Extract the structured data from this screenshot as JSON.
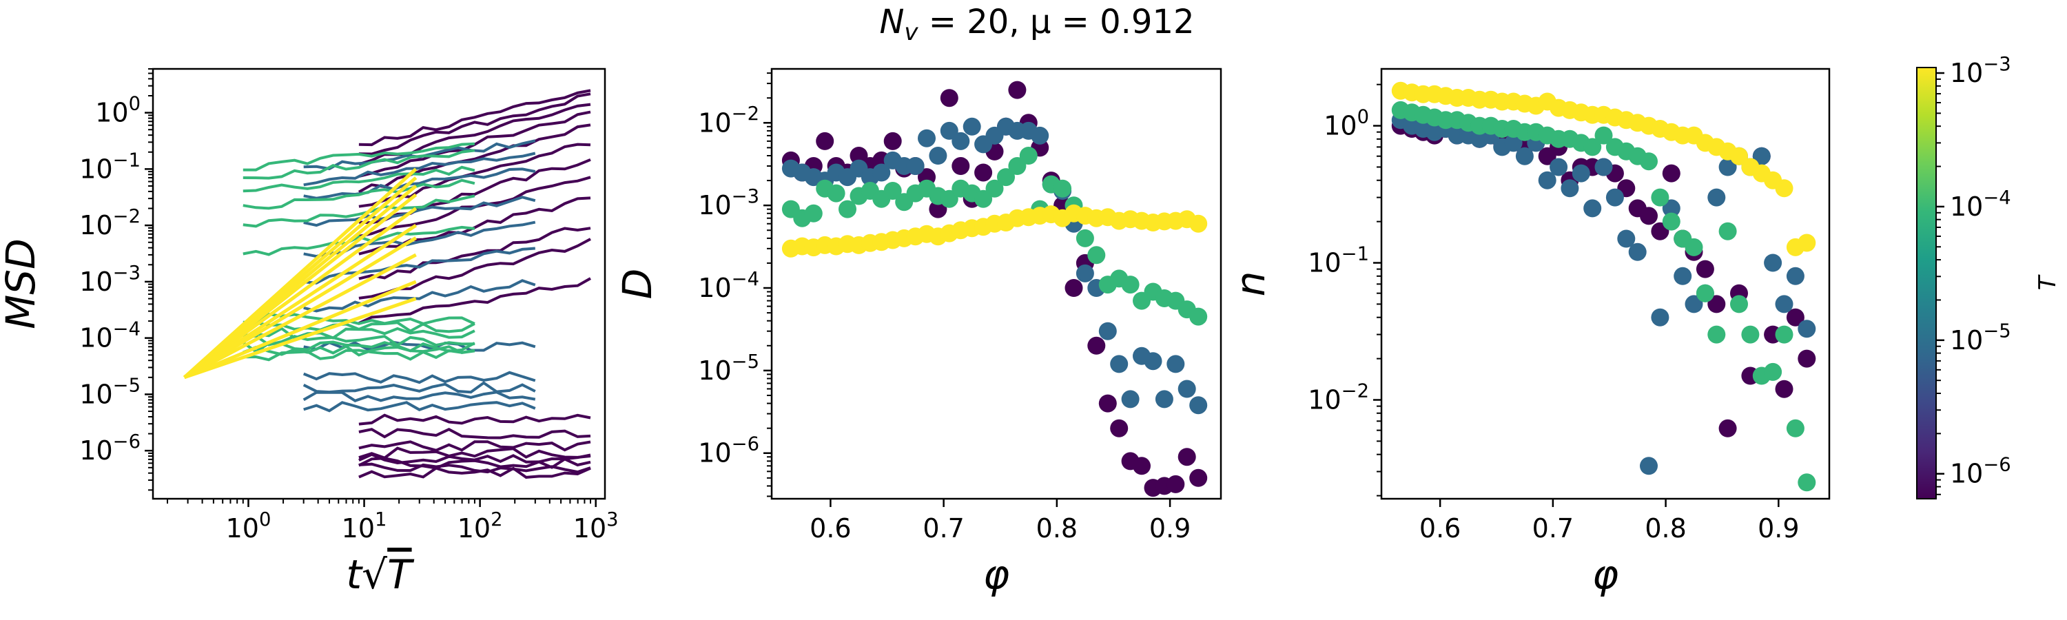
{
  "figure": {
    "suptitle": "N_v = 20, μ = 0.912",
    "colormap": "viridis",
    "temperature_levels": [
      "1e-6",
      "1e-5",
      "1e-4",
      "1e-3"
    ],
    "level_colors": [
      "#440154",
      "#31688e",
      "#35b779",
      "#fde725"
    ]
  },
  "colorbar": {
    "label": "T",
    "ticks": [
      "10^-6",
      "10^-5",
      "10^-4",
      "10^-3"
    ],
    "range": [
      6.5e-07,
      0.0011
    ],
    "scale": "log"
  },
  "chart_data": [
    {
      "type": "line",
      "title": "",
      "xlabel": "t√T",
      "ylabel": "MSD",
      "xscale": "log",
      "yscale": "log",
      "xlim": [
        0.15,
        1200
      ],
      "ylim": [
        1.4e-07,
        6
      ],
      "xticks": [
        "10^0",
        "10^1",
        "10^2",
        "10^3"
      ],
      "yticks": [
        "10^-6",
        "10^-5",
        "10^-4",
        "10^-3",
        "10^-2",
        "10^-1",
        "10^0"
      ],
      "grid": false,
      "series": [
        {
          "level": 0,
          "x_range": [
            9,
            900
          ],
          "plateaus": [
            4e-07,
            5e-07,
            6e-07,
            7e-07,
            9e-07,
            1.2e-06,
            2e-06,
            3.5e-06
          ],
          "growing": [
            [
              0.0002,
              0.001
            ],
            [
              0.0005,
              0.005
            ],
            [
              0.001,
              0.01
            ],
            [
              0.003,
              0.03
            ],
            [
              0.006,
              0.08
            ],
            [
              0.01,
              0.15
            ],
            [
              0.02,
              0.3
            ],
            [
              0.04,
              0.6
            ],
            [
              0.08,
              1.0
            ],
            [
              0.12,
              1.5
            ],
            [
              0.18,
              2.0
            ],
            [
              0.25,
              2.6
            ]
          ]
        },
        {
          "level": 1,
          "x_range": [
            3,
            300
          ],
          "plateaus": [
            6e-06,
            9e-06,
            1.3e-05,
            2e-05,
            7e-05
          ],
          "growing": [
            [
              0.0003,
              0.001
            ],
            [
              0.001,
              0.004
            ],
            [
              0.003,
              0.01
            ],
            [
              0.01,
              0.03
            ],
            [
              0.03,
              0.1
            ],
            [
              0.06,
              0.2
            ],
            [
              0.1,
              0.3
            ]
          ]
        },
        {
          "level": 2,
          "x_range": [
            0.9,
            90
          ],
          "plateaus": [
            5e-05,
            6e-05,
            7e-05,
            9e-05,
            0.00012,
            0.00016,
            0.00022
          ],
          "growing": [
            [
              0.003,
              0.01
            ],
            [
              0.01,
              0.03
            ],
            [
              0.02,
              0.06
            ],
            [
              0.04,
              0.1
            ],
            [
              0.07,
              0.2
            ],
            [
              0.1,
              0.3
            ]
          ]
        },
        {
          "level": 3,
          "x_range": [
            0.28,
            28
          ],
          "growing": [
            [
              2e-05,
              0.0005
            ],
            [
              2e-05,
              0.001
            ],
            [
              2e-05,
              0.003
            ],
            [
              2e-05,
              0.006
            ],
            [
              2e-05,
              0.01
            ],
            [
              2e-05,
              0.02
            ],
            [
              2e-05,
              0.035
            ],
            [
              2e-05,
              0.05
            ],
            [
              2e-05,
              0.07
            ],
            [
              2e-05,
              0.1
            ]
          ]
        }
      ]
    },
    {
      "type": "scatter",
      "title": "",
      "xlabel": "φ",
      "ylabel": "D",
      "xscale": "linear",
      "yscale": "log",
      "xlim": [
        0.548,
        0.945
      ],
      "ylim": [
        2.8e-07,
        0.045
      ],
      "xticks": [
        "0.6",
        "0.7",
        "0.8",
        "0.9"
      ],
      "yticks": [
        "10^-6",
        "10^-5",
        "10^-4",
        "10^-3",
        "10^-2"
      ],
      "grid": false,
      "series": [
        {
          "level": 0,
          "x": [
            0.565,
            0.575,
            0.585,
            0.595,
            0.605,
            0.615,
            0.625,
            0.635,
            0.645,
            0.655,
            0.665,
            0.675,
            0.685,
            0.695,
            0.705,
            0.715,
            0.725,
            0.735,
            0.745,
            0.755,
            0.765,
            0.775,
            0.785,
            0.795,
            0.805,
            0.815,
            0.825,
            0.835,
            0.845,
            0.855,
            0.865,
            0.875,
            0.885,
            0.895,
            0.905,
            0.915,
            0.925
          ],
          "y": [
            0.0035,
            0.0025,
            0.003,
            0.006,
            0.003,
            0.0025,
            0.004,
            0.003,
            0.0035,
            0.006,
            0.0028,
            0.003,
            0.0022,
            0.0009,
            0.02,
            0.003,
            0.0012,
            0.0025,
            0.0045,
            0.009,
            0.025,
            0.01,
            0.005,
            0.002,
            0.001,
            0.0001,
            0.0002,
            2e-05,
            4e-06,
            2e-06,
            8e-07,
            7e-07,
            3.8e-07,
            4e-07,
            4.2e-07,
            9e-07,
            5e-07
          ]
        },
        {
          "level": 1,
          "x": [
            0.565,
            0.575,
            0.585,
            0.595,
            0.605,
            0.615,
            0.625,
            0.635,
            0.645,
            0.655,
            0.665,
            0.675,
            0.685,
            0.695,
            0.705,
            0.715,
            0.725,
            0.735,
            0.745,
            0.755,
            0.765,
            0.775,
            0.785,
            0.795,
            0.805,
            0.815,
            0.825,
            0.835,
            0.845,
            0.855,
            0.865,
            0.875,
            0.885,
            0.895,
            0.905,
            0.915,
            0.925
          ],
          "y": [
            0.0028,
            0.0025,
            0.0022,
            0.002,
            0.0025,
            0.0022,
            0.0028,
            0.0022,
            0.0025,
            0.0035,
            0.003,
            0.003,
            0.0065,
            0.004,
            0.008,
            0.006,
            0.009,
            0.0055,
            0.007,
            0.009,
            0.008,
            0.008,
            0.007,
            0.0018,
            0.0015,
            0.0006,
            0.00015,
            0.0001,
            3e-05,
            1.2e-05,
            4.5e-06,
            1.5e-05,
            1.3e-05,
            4.5e-06,
            1.2e-05,
            6e-06,
            3.8e-06
          ]
        },
        {
          "level": 2,
          "x": [
            0.565,
            0.575,
            0.585,
            0.595,
            0.605,
            0.615,
            0.625,
            0.635,
            0.645,
            0.655,
            0.665,
            0.675,
            0.685,
            0.695,
            0.705,
            0.715,
            0.725,
            0.735,
            0.745,
            0.755,
            0.765,
            0.775,
            0.785,
            0.795,
            0.805,
            0.815,
            0.825,
            0.835,
            0.845,
            0.855,
            0.865,
            0.875,
            0.885,
            0.895,
            0.905,
            0.915,
            0.925
          ],
          "y": [
            0.0009,
            0.0007,
            0.0008,
            0.0016,
            0.0014,
            0.0009,
            0.0013,
            0.0015,
            0.0012,
            0.0015,
            0.0011,
            0.0014,
            0.0016,
            0.0013,
            0.0012,
            0.0016,
            0.0014,
            0.0012,
            0.0016,
            0.0022,
            0.003,
            0.004,
            0.0009,
            0.0018,
            0.0016,
            0.001,
            0.0004,
            0.00025,
            0.00011,
            0.00013,
            0.00011,
            7e-05,
            9e-05,
            7.5e-05,
            7e-05,
            5.5e-05,
            4.5e-05
          ]
        },
        {
          "level": 3,
          "x": [
            0.565,
            0.575,
            0.585,
            0.595,
            0.605,
            0.615,
            0.625,
            0.635,
            0.645,
            0.655,
            0.665,
            0.675,
            0.685,
            0.695,
            0.705,
            0.715,
            0.725,
            0.735,
            0.745,
            0.755,
            0.765,
            0.775,
            0.785,
            0.795,
            0.805,
            0.815,
            0.825,
            0.835,
            0.845,
            0.855,
            0.865,
            0.875,
            0.885,
            0.895,
            0.905,
            0.915,
            0.925
          ],
          "y": [
            0.0003,
            0.00032,
            0.00031,
            0.00033,
            0.00032,
            0.00034,
            0.00033,
            0.00035,
            0.00036,
            0.00038,
            0.0004,
            0.00042,
            0.00045,
            0.00042,
            0.00046,
            0.0005,
            0.00053,
            0.00055,
            0.0006,
            0.00062,
            0.0007,
            0.00072,
            0.00075,
            0.00078,
            0.0007,
            0.0008,
            0.00075,
            0.0007,
            0.00072,
            0.00065,
            0.00068,
            0.00065,
            0.00062,
            0.00064,
            0.00065,
            0.00068,
            0.0006
          ]
        }
      ]
    },
    {
      "type": "scatter",
      "title": "",
      "xlabel": "φ",
      "ylabel": "n",
      "xscale": "linear",
      "yscale": "log",
      "xlim": [
        0.548,
        0.945
      ],
      "ylim": [
        0.0019,
        2.6
      ],
      "xticks": [
        "0.6",
        "0.7",
        "0.8",
        "0.9"
      ],
      "yticks": [
        "10^-2",
        "10^-1",
        "10^0"
      ],
      "grid": false,
      "series": [
        {
          "level": 0,
          "x": [
            0.565,
            0.575,
            0.585,
            0.595,
            0.605,
            0.615,
            0.625,
            0.635,
            0.645,
            0.655,
            0.665,
            0.675,
            0.685,
            0.695,
            0.705,
            0.715,
            0.725,
            0.735,
            0.745,
            0.755,
            0.765,
            0.775,
            0.785,
            0.795,
            0.805,
            0.815,
            0.825,
            0.835,
            0.845,
            0.855,
            0.865,
            0.875,
            0.885,
            0.895,
            0.905,
            0.915,
            0.925
          ],
          "y": [
            1.0,
            0.95,
            0.9,
            0.85,
            0.95,
            0.85,
            0.9,
            0.8,
            0.85,
            0.75,
            0.85,
            0.7,
            0.8,
            0.6,
            0.7,
            0.4,
            0.5,
            0.5,
            0.5,
            0.45,
            0.35,
            0.25,
            0.22,
            0.17,
            0.45,
            0.15,
            0.12,
            0.09,
            0.05,
            0.0062,
            0.06,
            0.015,
            0.6,
            0.03,
            0.012,
            0.04,
            0.02
          ]
        },
        {
          "level": 1,
          "x": [
            0.565,
            0.575,
            0.585,
            0.595,
            0.605,
            0.615,
            0.625,
            0.635,
            0.645,
            0.655,
            0.665,
            0.675,
            0.685,
            0.695,
            0.705,
            0.715,
            0.725,
            0.735,
            0.745,
            0.755,
            0.765,
            0.775,
            0.785,
            0.795,
            0.805,
            0.815,
            0.825,
            0.835,
            0.845,
            0.855,
            0.865,
            0.875,
            0.885,
            0.895,
            0.905,
            0.915,
            0.925
          ],
          "y": [
            1.1,
            1.0,
            0.95,
            0.9,
            0.95,
            0.85,
            0.85,
            0.8,
            0.85,
            0.7,
            0.75,
            0.6,
            0.75,
            0.4,
            0.5,
            0.35,
            0.45,
            0.25,
            0.5,
            0.3,
            0.15,
            0.12,
            0.0033,
            0.04,
            0.25,
            0.08,
            0.05,
            0.06,
            0.3,
            0.5,
            0.6,
            0.5,
            0.6,
            0.1,
            0.05,
            0.08,
            0.033
          ]
        },
        {
          "level": 2,
          "x": [
            0.565,
            0.575,
            0.585,
            0.595,
            0.605,
            0.615,
            0.625,
            0.635,
            0.645,
            0.655,
            0.665,
            0.675,
            0.685,
            0.695,
            0.705,
            0.715,
            0.725,
            0.735,
            0.745,
            0.755,
            0.765,
            0.775,
            0.785,
            0.795,
            0.805,
            0.815,
            0.825,
            0.835,
            0.845,
            0.855,
            0.865,
            0.875,
            0.885,
            0.895,
            0.905,
            0.915,
            0.925
          ],
          "y": [
            1.3,
            1.25,
            1.2,
            1.15,
            1.1,
            1.1,
            1.05,
            1.0,
            1.0,
            0.95,
            0.95,
            0.9,
            0.9,
            0.85,
            0.8,
            0.8,
            0.75,
            0.7,
            0.85,
            0.7,
            0.65,
            0.6,
            0.55,
            0.3,
            0.2,
            0.15,
            0.13,
            0.06,
            0.03,
            0.17,
            0.05,
            0.03,
            0.015,
            0.016,
            0.03,
            0.0062,
            0.0025
          ]
        },
        {
          "level": 3,
          "x": [
            0.565,
            0.575,
            0.585,
            0.595,
            0.605,
            0.615,
            0.625,
            0.635,
            0.645,
            0.655,
            0.665,
            0.675,
            0.685,
            0.695,
            0.705,
            0.715,
            0.725,
            0.735,
            0.745,
            0.755,
            0.765,
            0.775,
            0.785,
            0.795,
            0.805,
            0.815,
            0.825,
            0.835,
            0.845,
            0.855,
            0.865,
            0.875,
            0.885,
            0.895,
            0.905,
            0.915,
            0.925
          ],
          "y": [
            1.8,
            1.75,
            1.7,
            1.7,
            1.65,
            1.6,
            1.6,
            1.55,
            1.55,
            1.5,
            1.5,
            1.45,
            1.4,
            1.5,
            1.35,
            1.3,
            1.25,
            1.2,
            1.2,
            1.15,
            1.1,
            1.05,
            1.0,
            0.95,
            0.9,
            0.85,
            0.85,
            0.75,
            0.7,
            0.65,
            0.6,
            0.5,
            0.45,
            0.4,
            0.35,
            0.13,
            0.14
          ]
        }
      ]
    }
  ]
}
